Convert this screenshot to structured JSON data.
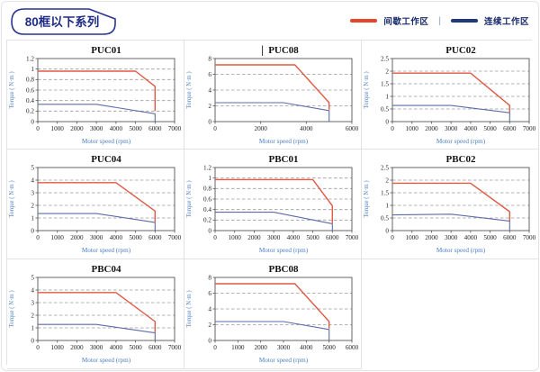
{
  "page": {
    "badge": "80框以下系列",
    "legend": {
      "items": [
        {
          "label": "间歇工作区",
          "color": "#e8432b"
        },
        {
          "label": "连续工作区",
          "color": "#20397b"
        }
      ],
      "separator": "|"
    }
  },
  "chart_data": [
    {
      "type": "line",
      "title": "PUC01",
      "xlabel": "Motor speed (rpm)",
      "ylabel": "Torque ( N·m )",
      "xlim": [
        0,
        7000
      ],
      "ylim": [
        0,
        1.2
      ],
      "xticks": [
        0,
        1000,
        2000,
        3000,
        4000,
        5000,
        6000,
        7000
      ],
      "yticks": [
        0,
        0.2,
        0.4,
        0.6,
        0.8,
        1,
        1.2
      ],
      "grid": "dashed-horizontal",
      "legend_position": "none",
      "series": [
        {
          "name": "间歇工作区",
          "color": "#e05a45",
          "points": [
            [
              0,
              0.96
            ],
            [
              5000,
              0.96
            ],
            [
              6000,
              0.67
            ],
            [
              6000,
              0.2
            ]
          ]
        },
        {
          "name": "连续工作区",
          "color": "#5c6ca8",
          "points": [
            [
              0,
              0.33
            ],
            [
              3000,
              0.33
            ],
            [
              6000,
              0.15
            ],
            [
              6000,
              0
            ]
          ]
        }
      ]
    },
    {
      "type": "line",
      "title": "PUC08",
      "caret": true,
      "xlabel": "Motor speed (rpm)",
      "ylabel": "Torque ( N·m )",
      "xlim": [
        0,
        6000
      ],
      "ylim": [
        0,
        8
      ],
      "xticks": [
        0,
        2000,
        4000,
        6000
      ],
      "yticks": [
        0,
        2,
        4,
        6,
        8
      ],
      "grid": "dashed-horizontal",
      "legend_position": "none",
      "series": [
        {
          "name": "间歇工作区",
          "color": "#e05a45",
          "points": [
            [
              0,
              7.2
            ],
            [
              3500,
              7.2
            ],
            [
              5000,
              2.4
            ],
            [
              5000,
              1.5
            ]
          ]
        },
        {
          "name": "连续工作区",
          "color": "#5c6ca8",
          "points": [
            [
              0,
              2.4
            ],
            [
              3000,
              2.4
            ],
            [
              5000,
              1.4
            ],
            [
              5000,
              0
            ]
          ]
        }
      ]
    },
    {
      "type": "line",
      "title": "PUC02",
      "xlabel": "Motor speed (rpm)",
      "ylabel": "Torque ( N·m )",
      "xlim": [
        0,
        7000
      ],
      "ylim": [
        0,
        2.5
      ],
      "xticks": [
        0,
        1000,
        2000,
        3000,
        4000,
        5000,
        6000,
        7000
      ],
      "yticks": [
        0,
        0.5,
        1,
        1.5,
        2,
        2.5
      ],
      "grid": "dashed-horizontal",
      "legend_position": "none",
      "series": [
        {
          "name": "间歇工作区",
          "color": "#e05a45",
          "points": [
            [
              0,
              1.92
            ],
            [
              4000,
              1.92
            ],
            [
              6000,
              0.64
            ],
            [
              6000,
              0.37
            ]
          ]
        },
        {
          "name": "连续工作区",
          "color": "#5c6ca8",
          "points": [
            [
              0,
              0.64
            ],
            [
              3000,
              0.64
            ],
            [
              6000,
              0.35
            ],
            [
              6000,
              0
            ]
          ]
        }
      ]
    },
    {
      "type": "line",
      "title": "PUC04",
      "xlabel": "Motor speed (rpm)",
      "ylabel": "Torque ( N·m )",
      "xlim": [
        0,
        7000
      ],
      "ylim": [
        0,
        5
      ],
      "xticks": [
        0,
        1000,
        2000,
        3000,
        4000,
        5000,
        6000,
        7000
      ],
      "yticks": [
        0,
        1,
        2,
        3,
        4,
        5
      ],
      "grid": "dashed-horizontal",
      "legend_position": "none",
      "series": [
        {
          "name": "间歇工作区",
          "color": "#e05a45",
          "points": [
            [
              0,
              3.8
            ],
            [
              4000,
              3.8
            ],
            [
              6000,
              1.55
            ],
            [
              6000,
              0.7
            ]
          ]
        },
        {
          "name": "连续工作区",
          "color": "#5c6ca8",
          "points": [
            [
              0,
              1.35
            ],
            [
              3000,
              1.35
            ],
            [
              6000,
              0.65
            ],
            [
              6000,
              0
            ]
          ]
        }
      ]
    },
    {
      "type": "line",
      "title": "PBC01",
      "xlabel": "Motor speed (rpm)",
      "ylabel": "Torque ( N·m )",
      "xlim": [
        0,
        7000
      ],
      "ylim": [
        0,
        1.2
      ],
      "xticks": [
        0,
        1000,
        2000,
        3000,
        4000,
        5000,
        6000,
        7000
      ],
      "yticks": [
        0,
        0.2,
        0.4,
        0.6,
        0.8,
        1,
        1.2
      ],
      "grid": "dashed-horizontal",
      "legend_position": "none",
      "series": [
        {
          "name": "间歇工作区",
          "color": "#e05a45",
          "points": [
            [
              0,
              0.97
            ],
            [
              5000,
              0.97
            ],
            [
              6000,
              0.47
            ],
            [
              6000,
              0.14
            ]
          ]
        },
        {
          "name": "连续工作区",
          "color": "#5c6ca8",
          "points": [
            [
              0,
              0.35
            ],
            [
              3000,
              0.35
            ],
            [
              6000,
              0.13
            ],
            [
              6000,
              0
            ]
          ]
        }
      ]
    },
    {
      "type": "line",
      "title": "PBC02",
      "xlabel": "Motor speed (rpm)",
      "ylabel": "Torque ( N·m )",
      "xlim": [
        0,
        7000
      ],
      "ylim": [
        0,
        2.5
      ],
      "xticks": [
        0,
        1000,
        2000,
        3000,
        4000,
        5000,
        6000,
        7000
      ],
      "yticks": [
        0,
        0.5,
        1,
        1.5,
        2,
        2.5
      ],
      "grid": "dashed-horizontal",
      "legend_position": "none",
      "series": [
        {
          "name": "间歇工作区",
          "color": "#e05a45",
          "points": [
            [
              0,
              1.88
            ],
            [
              4000,
              1.88
            ],
            [
              6000,
              0.75
            ],
            [
              6000,
              0.38
            ]
          ]
        },
        {
          "name": "连续工作区",
          "color": "#5c6ca8",
          "points": [
            [
              0,
              0.62
            ],
            [
              3000,
              0.65
            ],
            [
              6000,
              0.38
            ],
            [
              6000,
              0
            ]
          ]
        }
      ]
    },
    {
      "type": "line",
      "title": "PBC04",
      "xlabel": "Motor speed (rpm)",
      "ylabel": "Torque ( N·m )",
      "xlim": [
        0,
        7000
      ],
      "ylim": [
        0,
        5
      ],
      "xticks": [
        0,
        1000,
        2000,
        3000,
        4000,
        5000,
        6000,
        7000
      ],
      "yticks": [
        0,
        1,
        2,
        3,
        4,
        5
      ],
      "grid": "dashed-horizontal",
      "legend_position": "none",
      "series": [
        {
          "name": "间歇工作区",
          "color": "#e05a45",
          "points": [
            [
              0,
              3.8
            ],
            [
              4000,
              3.8
            ],
            [
              6000,
              1.5
            ],
            [
              6000,
              0.65
            ]
          ]
        },
        {
          "name": "连续工作区",
          "color": "#5c6ca8",
          "points": [
            [
              0,
              1.27
            ],
            [
              3000,
              1.27
            ],
            [
              6000,
              0.6
            ],
            [
              6000,
              0
            ]
          ]
        }
      ]
    },
    {
      "type": "line",
      "title": "PBC08",
      "xlabel": "Motor speed (rpm)",
      "ylabel": "Torque ( N·m )",
      "xlim": [
        0,
        6000
      ],
      "ylim": [
        0,
        8
      ],
      "xticks": [
        0,
        1000,
        2000,
        3000,
        4000,
        5000,
        6000
      ],
      "yticks": [
        0,
        2,
        4,
        6,
        8
      ],
      "grid": "dashed-horizontal",
      "legend_position": "none",
      "series": [
        {
          "name": "间歇工作区",
          "color": "#e05a45",
          "points": [
            [
              0,
              7.2
            ],
            [
              3500,
              7.2
            ],
            [
              5000,
              2.4
            ],
            [
              5000,
              1.5
            ]
          ]
        },
        {
          "name": "连续工作区",
          "color": "#5c6ca8",
          "points": [
            [
              0,
              2.4
            ],
            [
              3000,
              2.4
            ],
            [
              5000,
              1.4
            ],
            [
              5000,
              0
            ]
          ]
        }
      ]
    }
  ]
}
